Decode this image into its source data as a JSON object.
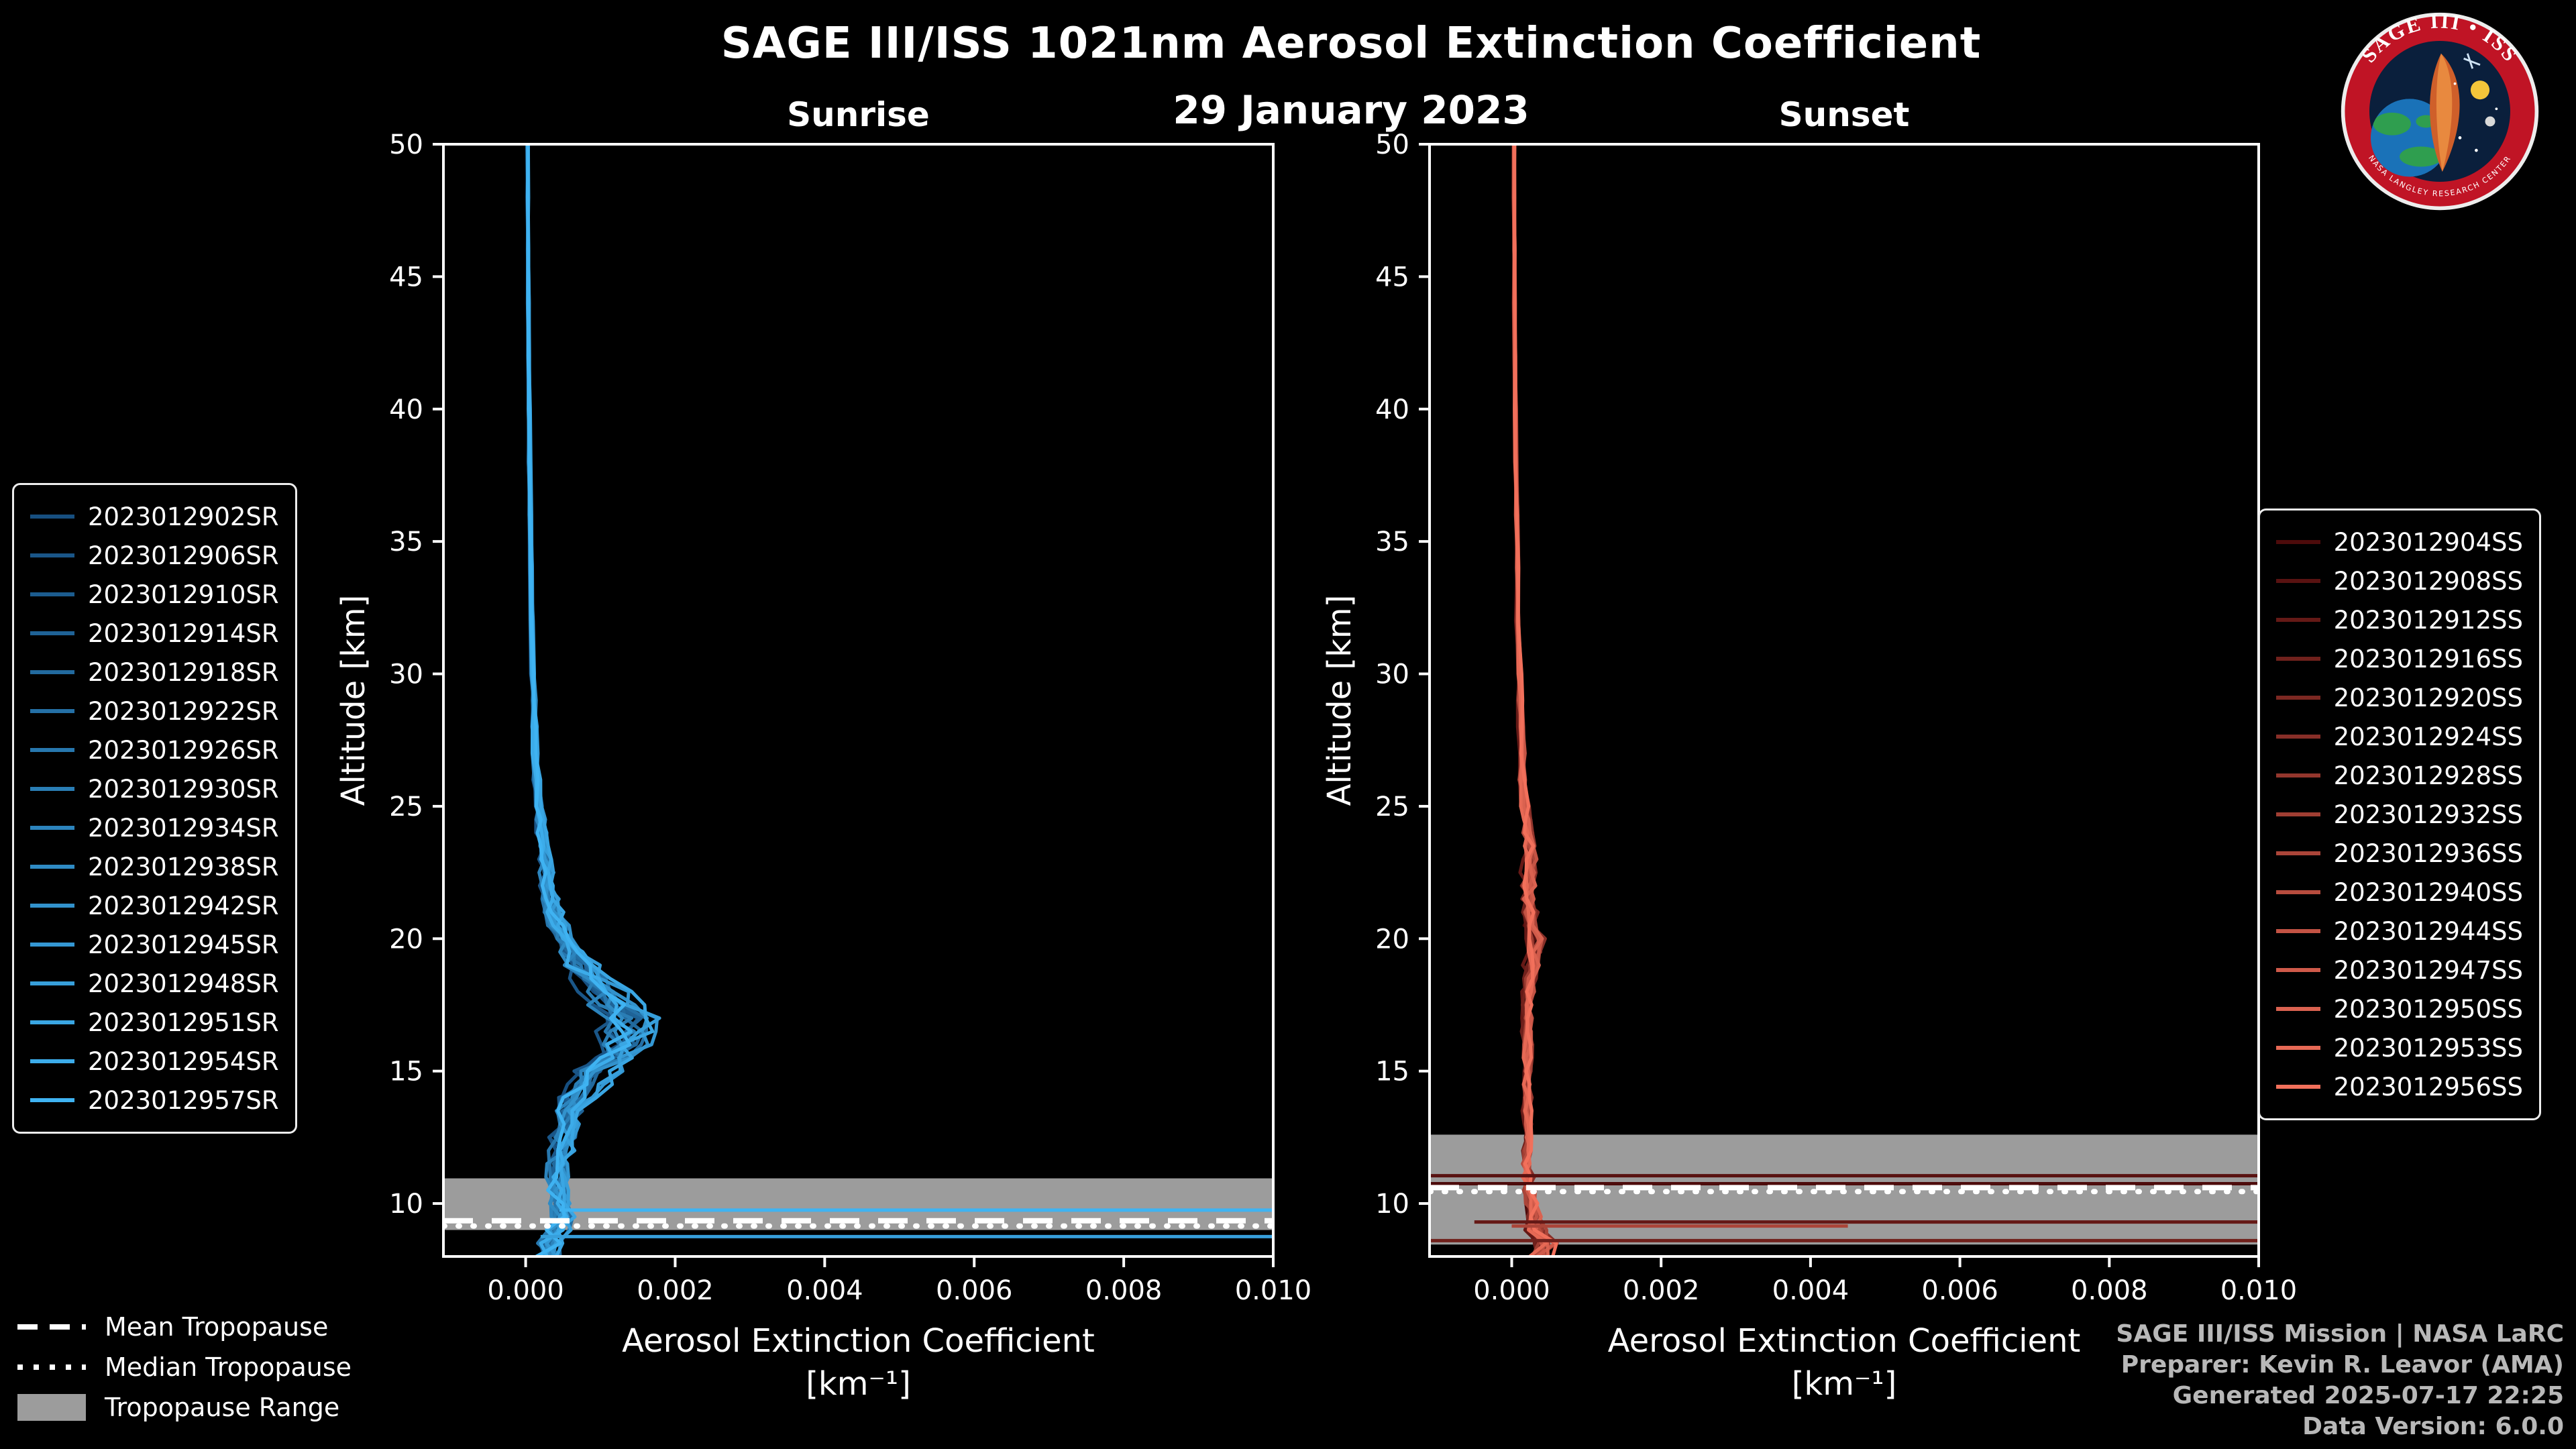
{
  "title": "SAGE III/ISS 1021nm Aerosol Extinction Coefficient",
  "date": "29 January 2023",
  "logo": {
    "title": "SAGE III • ISS",
    "ring_text": "NASA LANGLEY RESEARCH CENTER"
  },
  "credits": {
    "line1": "SAGE III/ISS Mission | NASA LaRC",
    "line2": "Preparer: Kevin R. Leavor (AMA)",
    "line3": "Generated 2025-07-17 22:25",
    "line4": "Data Version: 6.0.0"
  },
  "tropopause_legend": {
    "items": [
      {
        "label": "Mean Tropopause",
        "style": "dashed"
      },
      {
        "label": "Median Tropopause",
        "style": "dotted"
      },
      {
        "label": "Tropopause Range",
        "style": "band"
      }
    ]
  },
  "colors": {
    "background": "#000000",
    "foreground": "#ffffff",
    "tropopause_band": "#9c9c9c",
    "credits_text": "#b8b8b8",
    "logo_ring": "#c01425",
    "logo_inner": "#0a1f3c"
  },
  "chart_data": [
    {
      "type": "line",
      "panel": "sunrise",
      "title": "Sunrise",
      "xlabel": "Aerosol Extinction Coefficient",
      "xunit": "[km⁻¹]",
      "ylabel": "Altitude [km]",
      "xlim": [
        -0.0011,
        0.01
      ],
      "ylim": [
        8,
        50
      ],
      "xticks": [
        0,
        0.002,
        0.004,
        0.006,
        0.008,
        0.01
      ],
      "yticks": [
        10,
        15,
        20,
        25,
        30,
        35,
        40,
        45,
        50
      ],
      "series_names": [
        "2023012902SR",
        "2023012906SR",
        "2023012910SR",
        "2023012914SR",
        "2023012918SR",
        "2023012922SR",
        "2023012926SR",
        "2023012930SR",
        "2023012934SR",
        "2023012938SR",
        "2023012942SR",
        "2023012945SR",
        "2023012948SR",
        "2023012951SR",
        "2023012954SR",
        "2023012957SR"
      ],
      "color_start": "#174f80",
      "color_end": "#3fb3f2",
      "mean_profile": {
        "altitude_km": [
          50,
          48,
          46,
          44,
          42,
          40,
          38,
          36,
          34,
          32,
          30,
          29,
          28,
          27,
          26,
          25,
          24.5,
          24,
          23.5,
          23,
          22.5,
          22,
          21.5,
          21,
          20.5,
          20,
          19.5,
          19,
          18.5,
          18,
          17.5,
          17,
          16.5,
          16,
          15.5,
          15,
          14.5,
          14,
          13.5,
          13,
          12.5,
          12,
          11.5,
          11,
          10.5,
          10,
          9.5,
          9,
          8.5,
          8
        ],
        "extinction_km1": [
          3e-05,
          3e-05,
          3.2e-05,
          3.5e-05,
          4e-05,
          4.5e-05,
          5e-05,
          6e-05,
          7e-05,
          8e-05,
          0.0001,
          0.00011,
          0.00012,
          0.00013,
          0.00015,
          0.00018,
          0.0002,
          0.00022,
          0.00024,
          0.00026,
          0.00028,
          0.0003,
          0.00034,
          0.00038,
          0.00044,
          0.00052,
          0.00063,
          0.00076,
          0.0009,
          0.00105,
          0.0012,
          0.00135,
          0.0014,
          0.0013,
          0.00115,
          0.001,
          0.00085,
          0.00072,
          0.00062,
          0.00055,
          0.0005,
          0.00047,
          0.00044,
          0.00042,
          0.00042,
          0.00045,
          0.0005,
          0.00042,
          0.00035,
          0.0003
        ]
      },
      "jitter_profile": {
        "altitude_km": [
          50,
          40,
          30,
          25,
          22,
          20,
          18,
          17,
          16,
          15,
          13,
          11,
          10,
          9,
          8
        ],
        "amplitude": [
          8e-06,
          1e-05,
          2e-05,
          4e-05,
          8e-05,
          0.00012,
          0.0002,
          0.00025,
          0.00025,
          0.0002,
          0.00015,
          0.0001,
          0.00012,
          0.00015,
          0.00015
        ]
      },
      "cloud_lines": [
        {
          "altitude_km": 9.75,
          "series_index": 15,
          "from": 0.00045,
          "to": 0.0115
        },
        {
          "altitude_km": 8.75,
          "series_index": 12,
          "from": 0.0002,
          "to": 0.0115
        }
      ],
      "tropopause": {
        "mean_km": 9.35,
        "median_km": 9.15,
        "range_km": [
          9.0,
          10.95
        ]
      }
    },
    {
      "type": "line",
      "panel": "sunset",
      "title": "Sunset",
      "xlabel": "Aerosol Extinction Coefficient",
      "xunit": "[km⁻¹]",
      "ylabel": "Altitude [km]",
      "xlim": [
        -0.0011,
        0.01
      ],
      "ylim": [
        8,
        50
      ],
      "xticks": [
        0,
        0.002,
        0.004,
        0.006,
        0.008,
        0.01
      ],
      "yticks": [
        10,
        15,
        20,
        25,
        30,
        35,
        40,
        45,
        50
      ],
      "series_names": [
        "2023012904SS",
        "2023012908SS",
        "2023012912SS",
        "2023012916SS",
        "2023012920SS",
        "2023012924SS",
        "2023012928SS",
        "2023012932SS",
        "2023012936SS",
        "2023012940SS",
        "2023012944SS",
        "2023012947SS",
        "2023012950SS",
        "2023012953SS",
        "2023012956SS"
      ],
      "color_start": "#4d0b0b",
      "color_end": "#f2705b",
      "mean_profile": {
        "altitude_km": [
          50,
          48,
          46,
          44,
          42,
          40,
          38,
          36,
          34,
          32,
          30,
          29,
          28,
          27,
          26,
          25,
          24.5,
          24,
          23.5,
          23,
          22.5,
          22,
          21.5,
          21,
          20.5,
          20,
          19.5,
          19,
          18.5,
          18,
          17.5,
          17,
          16.5,
          16,
          15.5,
          15,
          14.5,
          14,
          13.5,
          13,
          12.5,
          12,
          11.5,
          11,
          10.5,
          10,
          9.5,
          9,
          8.5,
          8
        ],
        "extinction_km1": [
          3e-05,
          3e-05,
          3.2e-05,
          3.5e-05,
          4e-05,
          4.5e-05,
          5e-05,
          6e-05,
          7e-05,
          8e-05,
          0.0001,
          0.00011,
          0.00012,
          0.00013,
          0.00014,
          0.00016,
          0.00018,
          0.0002,
          0.00022,
          0.00023,
          0.00022,
          0.00021,
          0.00022,
          0.00024,
          0.00027,
          0.0003,
          0.00028,
          0.00026,
          0.00024,
          0.00022,
          0.00021,
          0.0002,
          0.0002,
          0.0002,
          0.0002,
          0.0002,
          0.0002,
          0.0002,
          0.0002,
          0.0002,
          0.0002,
          0.0002,
          0.0002,
          0.00021,
          0.00022,
          0.00024,
          0.00028,
          0.00032,
          0.00042,
          0.00038
        ]
      },
      "jitter_profile": {
        "altitude_km": [
          50,
          40,
          30,
          25,
          23,
          21,
          20,
          18,
          15,
          12,
          10,
          9,
          8
        ],
        "amplitude": [
          8e-06,
          1e-05,
          2e-05,
          5e-05,
          8e-05,
          0.0001,
          0.00012,
          6e-05,
          4e-05,
          5e-05,
          8e-05,
          0.00012,
          0.00015
        ]
      },
      "cloud_lines": [
        {
          "altitude_km": 11.05,
          "series_index": 1,
          "from": -0.0011,
          "to": 0.0115
        },
        {
          "altitude_km": 10.75,
          "series_index": 0,
          "from": -0.0011,
          "to": 0.0115
        },
        {
          "altitude_km": 9.3,
          "series_index": 2,
          "from": -0.0005,
          "to": 0.0115
        },
        {
          "altitude_km": 8.6,
          "series_index": 3,
          "from": -0.0011,
          "to": 0.0115
        },
        {
          "altitude_km": 9.15,
          "series_index": 8,
          "from": 0.0,
          "to": 0.0045
        }
      ],
      "tropopause": {
        "mean_km": 10.6,
        "median_km": 10.45,
        "range_km": [
          8.45,
          12.6
        ]
      }
    }
  ]
}
